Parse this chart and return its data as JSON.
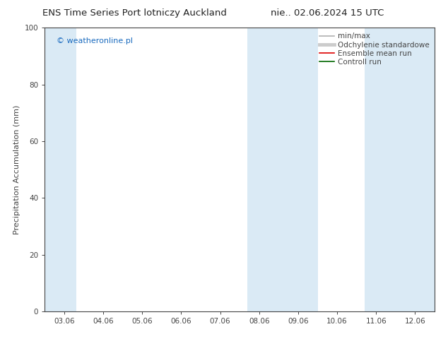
{
  "title": "ENS Time Series Port lotniczy Auckland",
  "title2": "nie.. 02.06.2024 15 UTC",
  "ylabel": "Precipitation Accumulation (mm)",
  "watermark": "© weatheronline.pl",
  "watermark_color": "#1a6bbf",
  "ylim": [
    0,
    100
  ],
  "yticks": [
    0,
    20,
    40,
    60,
    80,
    100
  ],
  "x_labels": [
    "03.06",
    "04.06",
    "05.06",
    "06.06",
    "07.06",
    "08.06",
    "09.06",
    "10.06",
    "11.06",
    "12.06"
  ],
  "x_positions": [
    0,
    1,
    2,
    3,
    4,
    5,
    6,
    7,
    8,
    9
  ],
  "xlim": [
    -0.5,
    9.5
  ],
  "shaded_regions": [
    {
      "xmin": -0.5,
      "xmax": 0.3,
      "color": "#daeaf5"
    },
    {
      "xmin": 4.7,
      "xmax": 6.5,
      "color": "#daeaf5"
    },
    {
      "xmin": 7.7,
      "xmax": 9.5,
      "color": "#daeaf5"
    }
  ],
  "legend_items": [
    {
      "label": "min/max",
      "color": "#b0b0b0",
      "lw": 1.2,
      "style": "solid"
    },
    {
      "label": "Odchylenie standardowe",
      "color": "#cccccc",
      "lw": 3.5,
      "style": "solid"
    },
    {
      "label": "Ensemble mean run",
      "color": "#dd0000",
      "lw": 1.2,
      "style": "solid"
    },
    {
      "label": "Controll run",
      "color": "#006600",
      "lw": 1.2,
      "style": "solid"
    }
  ],
  "bg_color": "#ffffff",
  "plot_bg_color": "#ffffff",
  "spine_color": "#444444",
  "tick_color": "#444444",
  "title_fontsize": 9.5,
  "label_fontsize": 8,
  "tick_fontsize": 7.5,
  "legend_fontsize": 7.5,
  "watermark_fontsize": 8
}
